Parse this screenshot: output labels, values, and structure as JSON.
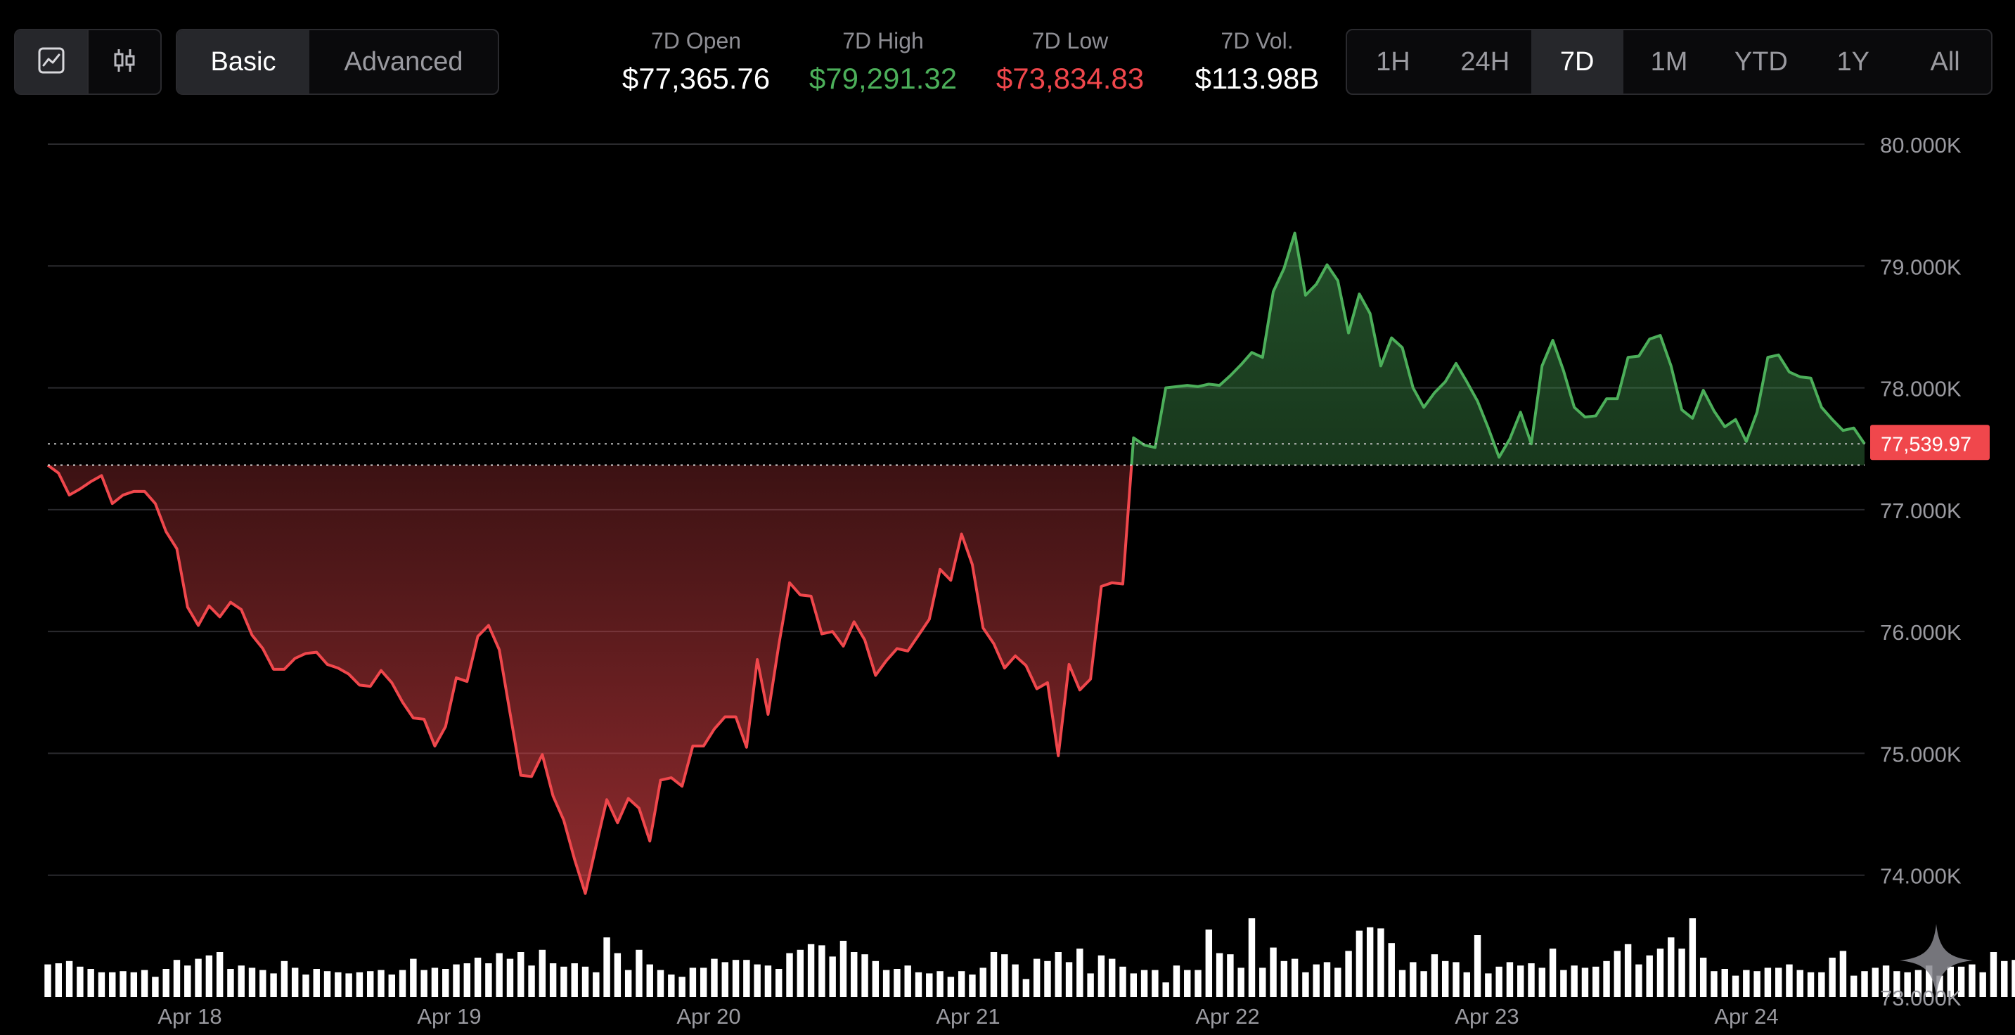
{
  "toolbar": {
    "chart_types": [
      {
        "icon": "line-chart-icon",
        "active": true
      },
      {
        "icon": "candlestick-icon",
        "active": false
      }
    ],
    "modes": [
      "Basic",
      "Advanced"
    ],
    "active_mode": "Basic"
  },
  "stats": [
    {
      "label": "7D Open",
      "value": "$77,365.76",
      "color": "#ffffff"
    },
    {
      "label": "7D High",
      "value": "$79,291.32",
      "color": "#4caf5a"
    },
    {
      "label": "7D Low",
      "value": "$73,834.83",
      "color": "#f0474c"
    },
    {
      "label": "7D Vol.",
      "value": "$113.98B",
      "color": "#ffffff"
    }
  ],
  "ranges": [
    "1H",
    "24H",
    "7D",
    "1M",
    "YTD",
    "1Y",
    "All"
  ],
  "active_range": "7D",
  "colors": {
    "up": "#4caf5a",
    "down": "#f0474c",
    "grid": "#2a2a2e",
    "axis_text": "#9a9aa0",
    "volume": "#ffffff"
  },
  "chart_data": {
    "type": "area",
    "title": "",
    "xlabel": "",
    "ylabel": "",
    "baseline": 77365.76,
    "current_price_label": "77,539.97",
    "y_ticks": [
      "80.000K",
      "79.000K",
      "78.000K",
      "77.000K",
      "76.000K",
      "75.000K",
      "74.000K",
      "73.000K"
    ],
    "ylim": [
      73000,
      80000
    ],
    "x_ticks": [
      "Apr 18",
      "Apr 19",
      "Apr 20",
      "Apr 21",
      "Apr 22",
      "Apr 23",
      "Apr 24"
    ],
    "grid": true,
    "price": [
      77365,
      77300,
      77120,
      77170,
      77230,
      77280,
      77050,
      77120,
      77150,
      77150,
      77050,
      76820,
      76680,
      76200,
      76050,
      76210,
      76120,
      76240,
      76180,
      75970,
      75860,
      75690,
      75690,
      75780,
      75820,
      75830,
      75730,
      75700,
      75650,
      75560,
      75550,
      75680,
      75580,
      75420,
      75290,
      75280,
      75060,
      75220,
      75620,
      75590,
      75960,
      76050,
      75850,
      75330,
      74820,
      74810,
      74990,
      74650,
      74450,
      74130,
      73850,
      74240,
      74620,
      74430,
      74630,
      74550,
      74280,
      74780,
      74800,
      74730,
      75060,
      75060,
      75200,
      75300,
      75300,
      75050,
      75770,
      75320,
      75890,
      76400,
      76300,
      76290,
      75980,
      76000,
      75880,
      76080,
      75930,
      75640,
      75760,
      75860,
      75840,
      75970,
      76100,
      76510,
      76420,
      76800,
      76550,
      76030,
      75900,
      75700,
      75800,
      75720,
      75530,
      75580,
      74980,
      75730,
      75520,
      75610,
      76370,
      76400,
      76390,
      77590,
      77530,
      77510,
      78000,
      78010,
      78020,
      78010,
      78030,
      78020,
      78100,
      78190,
      78290,
      78250,
      78790,
      78980,
      79270,
      78760,
      78850,
      79010,
      78880,
      78450,
      78770,
      78610,
      78180,
      78410,
      78330,
      78000,
      77840,
      77960,
      78050,
      78200,
      78050,
      77890,
      77670,
      77430,
      77580,
      77800,
      77540,
      78180,
      78390,
      78140,
      77840,
      77760,
      77770,
      77910,
      77910,
      78250,
      78260,
      78400,
      78430,
      78180,
      77820,
      77750,
      77980,
      77810,
      77680,
      77740,
      77560,
      77800,
      78250,
      78270,
      78130,
      78090,
      78080,
      77840,
      77740,
      77650,
      77670,
      77540
    ],
    "volume": [
      29,
      30,
      32,
      27,
      25,
      22,
      22,
      23,
      22,
      24,
      18,
      25,
      33,
      28,
      34,
      37,
      40,
      25,
      28,
      26,
      24,
      21,
      32,
      26,
      20,
      25,
      23,
      22,
      21,
      22,
      23,
      24,
      20,
      24,
      34,
      24,
      26,
      25,
      29,
      30,
      35,
      30,
      39,
      34,
      40,
      28,
      42,
      30,
      27,
      30,
      27,
      22,
      53,
      39,
      24,
      42,
      29,
      24,
      20,
      18,
      26,
      26,
      34,
      31,
      33,
      33,
      29,
      28,
      25,
      39,
      42,
      47,
      46,
      36,
      50,
      40,
      38,
      32,
      24,
      25,
      28,
      22,
      21,
      23,
      18,
      23,
      20,
      26,
      40,
      38,
      29,
      16,
      34,
      32,
      40,
      31,
      43,
      21,
      37,
      34,
      27,
      21,
      24,
      24,
      13,
      28,
      24,
      24,
      60,
      39,
      38,
      26,
      70,
      26,
      44,
      32,
      34,
      22,
      29,
      31,
      26,
      41,
      59,
      62,
      61,
      48,
      24,
      31,
      23,
      38,
      32,
      31,
      22,
      55,
      21,
      27,
      31,
      28,
      30,
      26,
      43,
      24,
      28,
      26,
      27,
      32,
      41,
      47,
      29,
      37,
      43,
      53,
      43,
      70,
      35,
      23,
      25,
      19,
      24,
      23,
      26,
      26,
      29,
      24,
      22,
      22,
      35,
      41,
      19,
      23,
      26,
      28,
      23,
      22,
      24,
      28,
      19,
      27,
      27,
      29,
      22,
      40,
      32,
      33,
      19,
      40,
      48,
      41,
      32,
      32,
      21,
      28,
      23,
      18
    ]
  },
  "watermark_icon": "sparkle-icon"
}
